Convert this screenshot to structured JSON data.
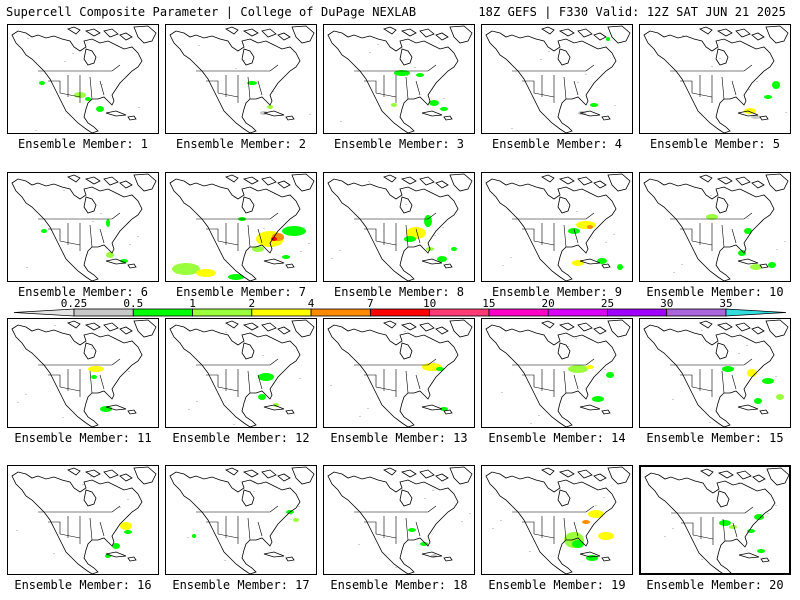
{
  "header": {
    "left": "Supercell Composite Parameter | College of DuPage NEXLAB",
    "right": "18Z GEFS | F330 Valid: 12Z SAT JUN 21 2025"
  },
  "panels": [
    {
      "label": "Ensemble Member: 1"
    },
    {
      "label": "Ensemble Member: 2"
    },
    {
      "label": "Ensemble Member: 3"
    },
    {
      "label": "Ensemble Member: 4"
    },
    {
      "label": "Ensemble Member: 5"
    },
    {
      "label": "Ensemble Member: 6"
    },
    {
      "label": "Ensemble Member: 7"
    },
    {
      "label": "Ensemble Member: 8"
    },
    {
      "label": "Ensemble Member: 9"
    },
    {
      "label": "Ensemble Member: 10"
    },
    {
      "label": "Ensemble Member: 11"
    },
    {
      "label": "Ensemble Member: 12"
    },
    {
      "label": "Ensemble Member: 13"
    },
    {
      "label": "Ensemble Member: 14"
    },
    {
      "label": "Ensemble Member: 15"
    },
    {
      "label": "Ensemble Member: 16"
    },
    {
      "label": "Ensemble Member: 17"
    },
    {
      "label": "Ensemble Member: 18"
    },
    {
      "label": "Ensemble Member: 19"
    },
    {
      "label": "Ensemble Member: 20"
    }
  ],
  "colorbar": {
    "ticks": [
      "0.25",
      "0.5",
      "1",
      "2",
      "4",
      "7",
      "10",
      "15",
      "20",
      "25",
      "30",
      "35"
    ],
    "colors": [
      "#e6e6e6",
      "#c8c8c8",
      "#00ff00",
      "#9aff3c",
      "#ffff00",
      "#ff8c00",
      "#ff0000",
      "#ff3c78",
      "#ff00c8",
      "#dc00ff",
      "#a000ff",
      "#aa66dd",
      "#33dddd"
    ]
  }
}
